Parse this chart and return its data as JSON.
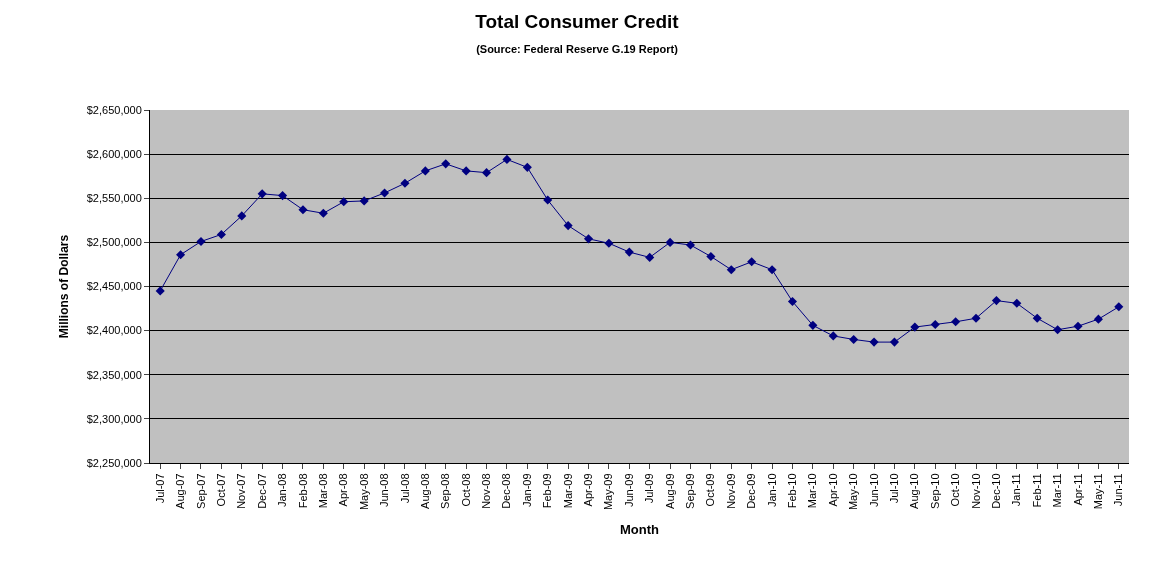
{
  "chart_data": {
    "type": "line",
    "title": "Total Consumer Credit",
    "subtitle": "(Source: Federal Reserve G.19 Report)",
    "xlabel": "Month",
    "ylabel": "Millions of Dollars",
    "categories": [
      "Jul-07",
      "Aug-07",
      "Sep-07",
      "Oct-07",
      "Nov-07",
      "Dec-07",
      "Jan-08",
      "Feb-08",
      "Mar-08",
      "Apr-08",
      "May-08",
      "Jun-08",
      "Jul-08",
      "Aug-08",
      "Sep-08",
      "Oct-08",
      "Nov-08",
      "Dec-08",
      "Jan-09",
      "Feb-09",
      "Mar-09",
      "Apr-09",
      "May-09",
      "Jun-09",
      "Jul-09",
      "Aug-09",
      "Sep-09",
      "Oct-09",
      "Nov-09",
      "Dec-09",
      "Jan-10",
      "Feb-10",
      "Mar-10",
      "Apr-10",
      "May-10",
      "Jun-10",
      "Jul-10",
      "Aug-10",
      "Sep-10",
      "Oct-10",
      "Nov-10",
      "Dec-10",
      "Jan-11",
      "Feb-11",
      "Mar-11",
      "Apr-11",
      "May-11",
      "Jun-11"
    ],
    "series": [
      {
        "color": "#000080",
        "values": [
          2445000,
          2486000,
          2501000,
          2509000,
          2530000,
          2555000,
          2553000,
          2537000,
          2533000,
          2546000,
          2547000,
          2556000,
          2567000,
          2581000,
          2589000,
          2581000,
          2579000,
          2594000,
          2585000,
          2548000,
          2519000,
          2504000,
          2499000,
          2489000,
          2483000,
          2500000,
          2497000,
          2484000,
          2469000,
          2478000,
          2469000,
          2433000,
          2406000,
          2394000,
          2390000,
          2387000,
          2387000,
          2404000,
          2407000,
          2410000,
          2414000,
          2434000,
          2431000,
          2414000,
          2401000,
          2405000,
          2413000,
          2427000
        ]
      }
    ],
    "ylim": [
      2250000,
      2650000
    ],
    "yticks": [
      {
        "value": 2250000,
        "label": "$2,250,000"
      },
      {
        "value": 2300000,
        "label": "$2,300,000"
      },
      {
        "value": 2350000,
        "label": "$2,350,000"
      },
      {
        "value": 2400000,
        "label": "$2,400,000"
      },
      {
        "value": 2450000,
        "label": "$2,450,000"
      },
      {
        "value": 2500000,
        "label": "$2,500,000"
      },
      {
        "value": 2550000,
        "label": "$2,550,000"
      },
      {
        "value": 2600000,
        "label": "$2,600,000"
      },
      {
        "value": 2650000,
        "label": "$2,650,000"
      }
    ],
    "grid": "y",
    "marker": "diamond",
    "line_style": "solid"
  }
}
